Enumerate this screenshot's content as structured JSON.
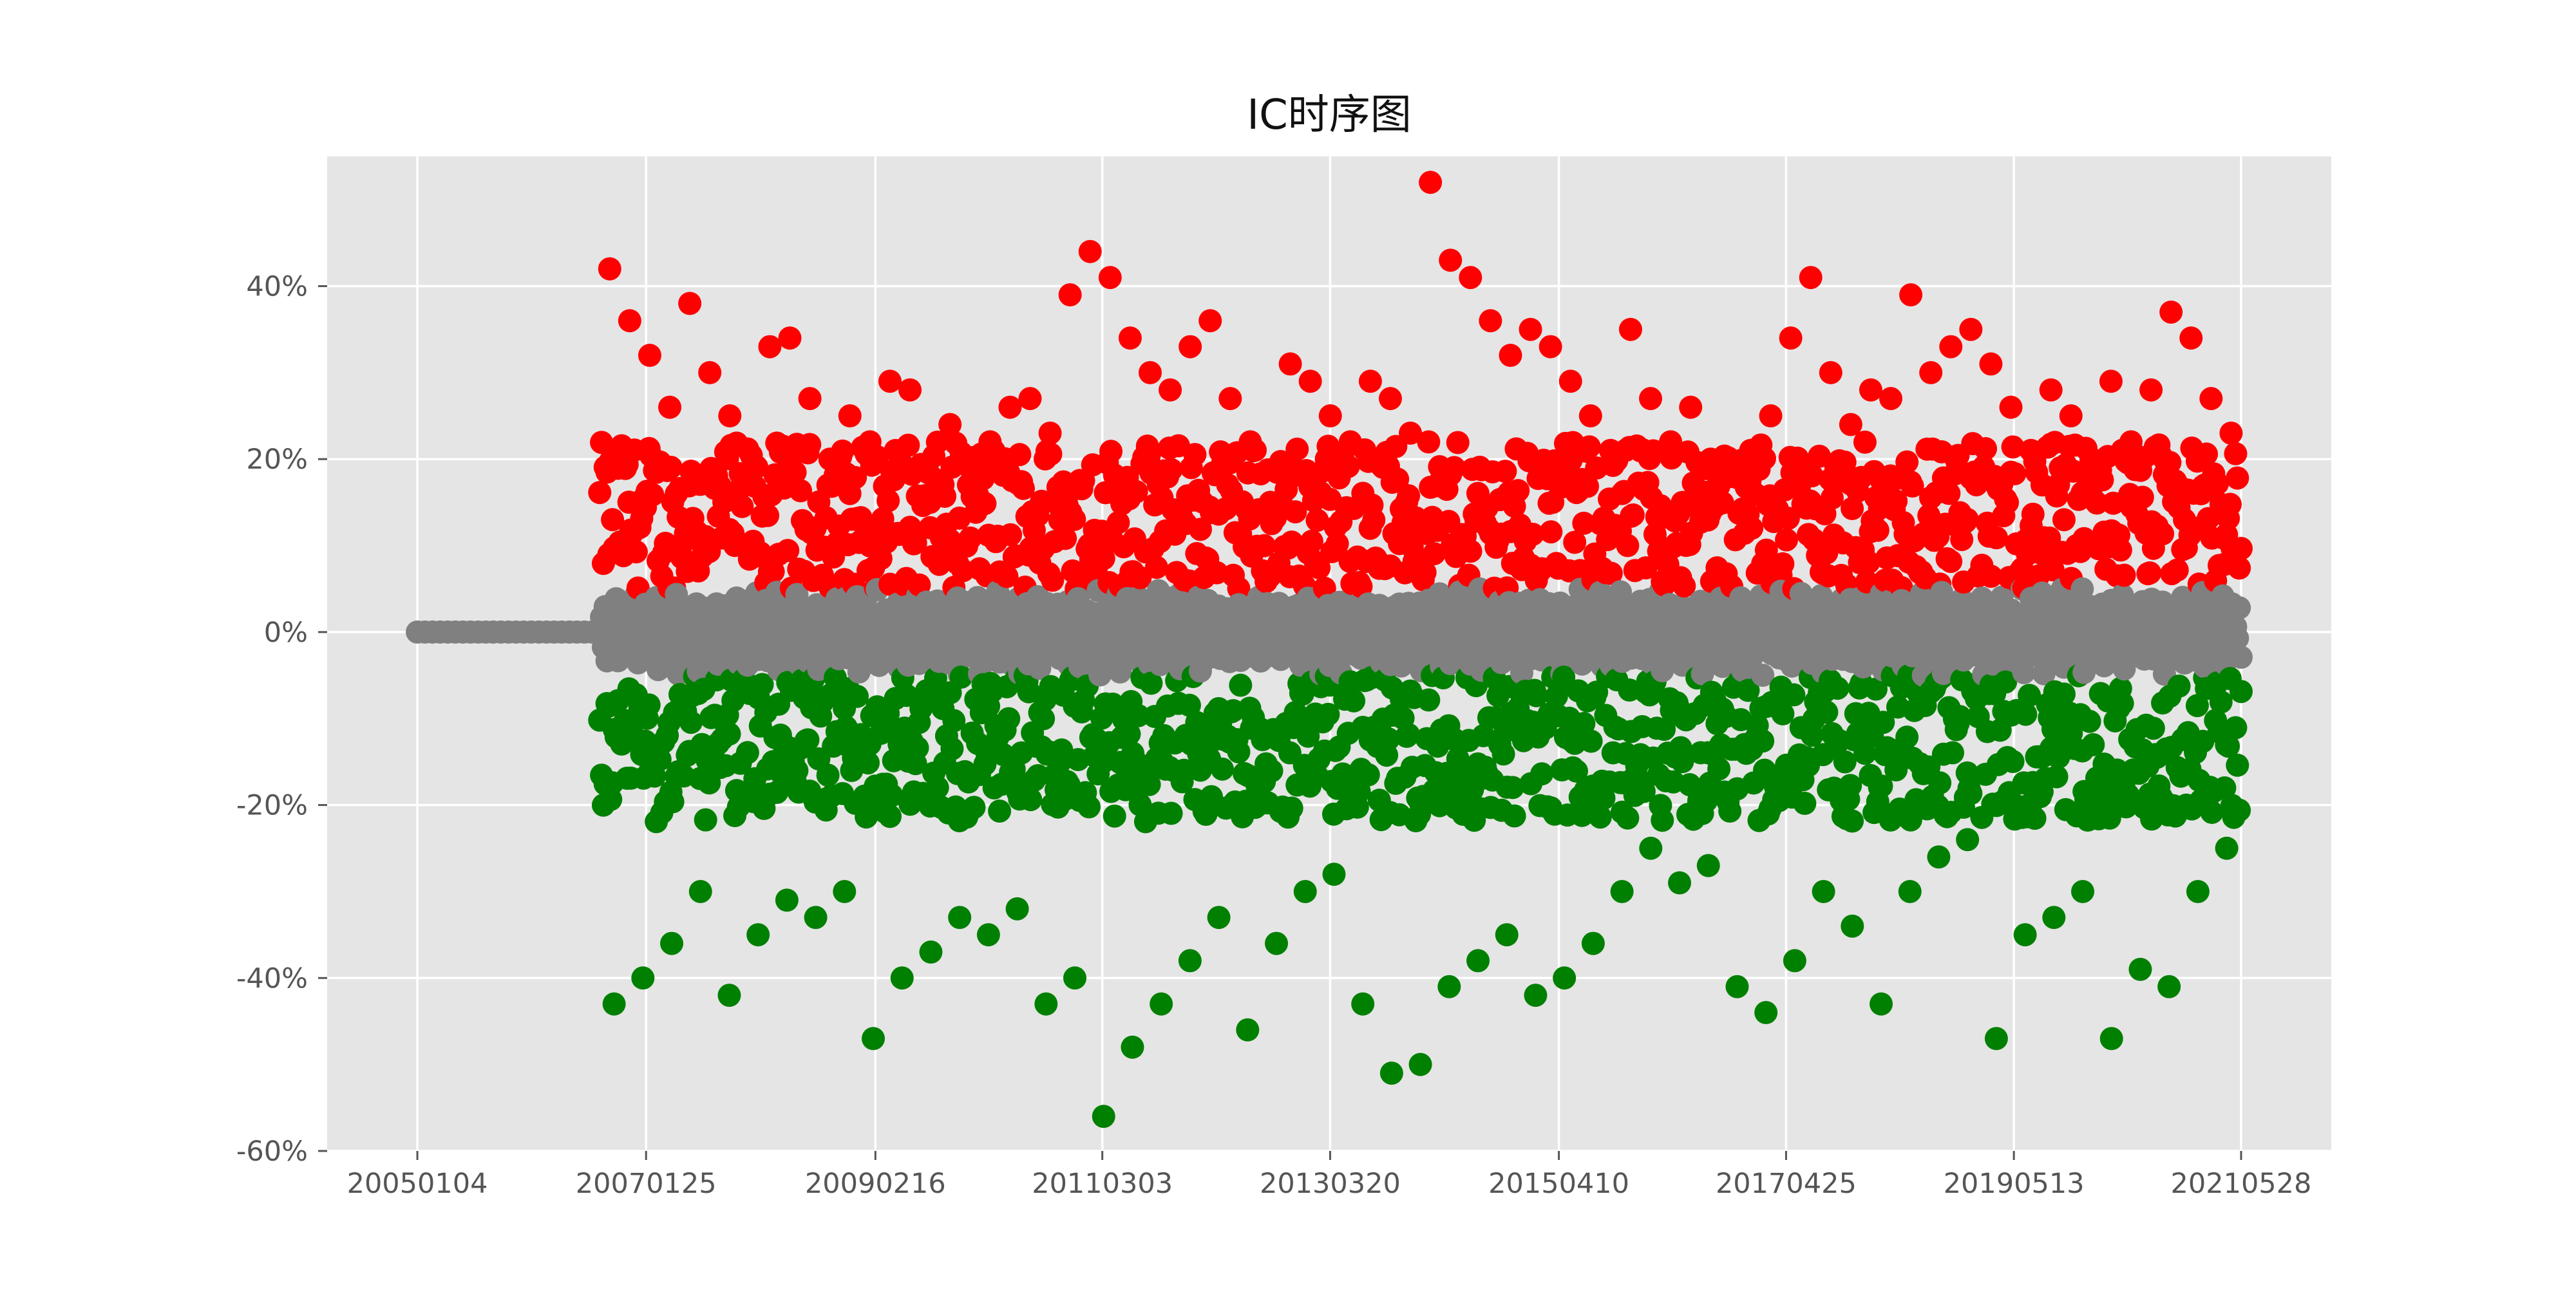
{
  "chart_data": {
    "type": "scatter",
    "title": "IC时序图",
    "xlabel": "",
    "ylabel": "",
    "x_ticks": [
      "20050104",
      "20070125",
      "20090216",
      "20110303",
      "20130320",
      "20150410",
      "20170425",
      "20190513",
      "20210528"
    ],
    "x_range": [
      "20050104",
      "20210528"
    ],
    "y_ticks": [
      "-60%",
      "-40%",
      "-20%",
      "0%",
      "20%",
      "40%"
    ],
    "ylim": [
      -0.6,
      0.55
    ],
    "grid": true,
    "legend": "none",
    "background": "#e5e5e5",
    "series": [
      {
        "color": "#ff0000",
        "values": [
          0.42,
          0.36,
          0.32,
          0.26,
          0.38,
          0.3,
          0.25,
          0.18,
          0.33,
          0.34,
          0.27,
          0.2,
          0.25,
          0.22,
          0.29,
          0.28,
          0.15,
          0.24,
          0.19,
          0.22,
          0.26,
          0.27,
          0.23,
          0.39,
          0.44,
          0.41,
          0.34,
          0.3,
          0.28,
          0.33,
          0.36,
          0.27,
          0.22,
          0.15,
          0.31,
          0.29,
          0.25,
          0.22,
          0.29,
          0.27,
          0.23,
          0.52,
          0.43,
          0.41,
          0.36,
          0.32,
          0.35,
          0.33,
          0.29,
          0.25,
          0.21,
          0.35,
          0.27,
          0.22,
          0.26,
          0.2,
          0.18,
          0.21,
          0.25,
          0.34,
          0.41,
          0.3,
          0.24,
          0.28,
          0.27,
          0.39,
          0.3,
          0.33,
          0.35,
          0.31,
          0.26,
          0.21,
          0.28,
          0.25,
          0.2,
          0.29,
          0.22,
          0.28,
          0.37,
          0.34,
          0.27,
          0.23
        ]
      },
      {
        "color": "#808080",
        "values": [
          0.0,
          0.02,
          -0.02,
          0.04,
          -0.04,
          0.01,
          -0.01,
          0.03,
          -0.03,
          0.05,
          -0.05
        ]
      },
      {
        "color": "#008000",
        "values": [
          -0.43,
          -0.4,
          -0.36,
          -0.3,
          -0.42,
          -0.35,
          -0.31,
          -0.33,
          -0.3,
          -0.47,
          -0.4,
          -0.37,
          -0.33,
          -0.35,
          -0.32,
          -0.43,
          -0.4,
          -0.56,
          -0.48,
          -0.43,
          -0.38,
          -0.33,
          -0.46,
          -0.36,
          -0.3,
          -0.28,
          -0.43,
          -0.51,
          -0.5,
          -0.41,
          -0.38,
          -0.35,
          -0.42,
          -0.4,
          -0.36,
          -0.3,
          -0.25,
          -0.29,
          -0.27,
          -0.41,
          -0.44,
          -0.38,
          -0.3,
          -0.34,
          -0.43,
          -0.3,
          -0.26,
          -0.24,
          -0.47,
          -0.35,
          -0.33,
          -0.3,
          -0.47,
          -0.39,
          -0.41,
          -0.3,
          -0.25
        ]
      }
    ]
  }
}
